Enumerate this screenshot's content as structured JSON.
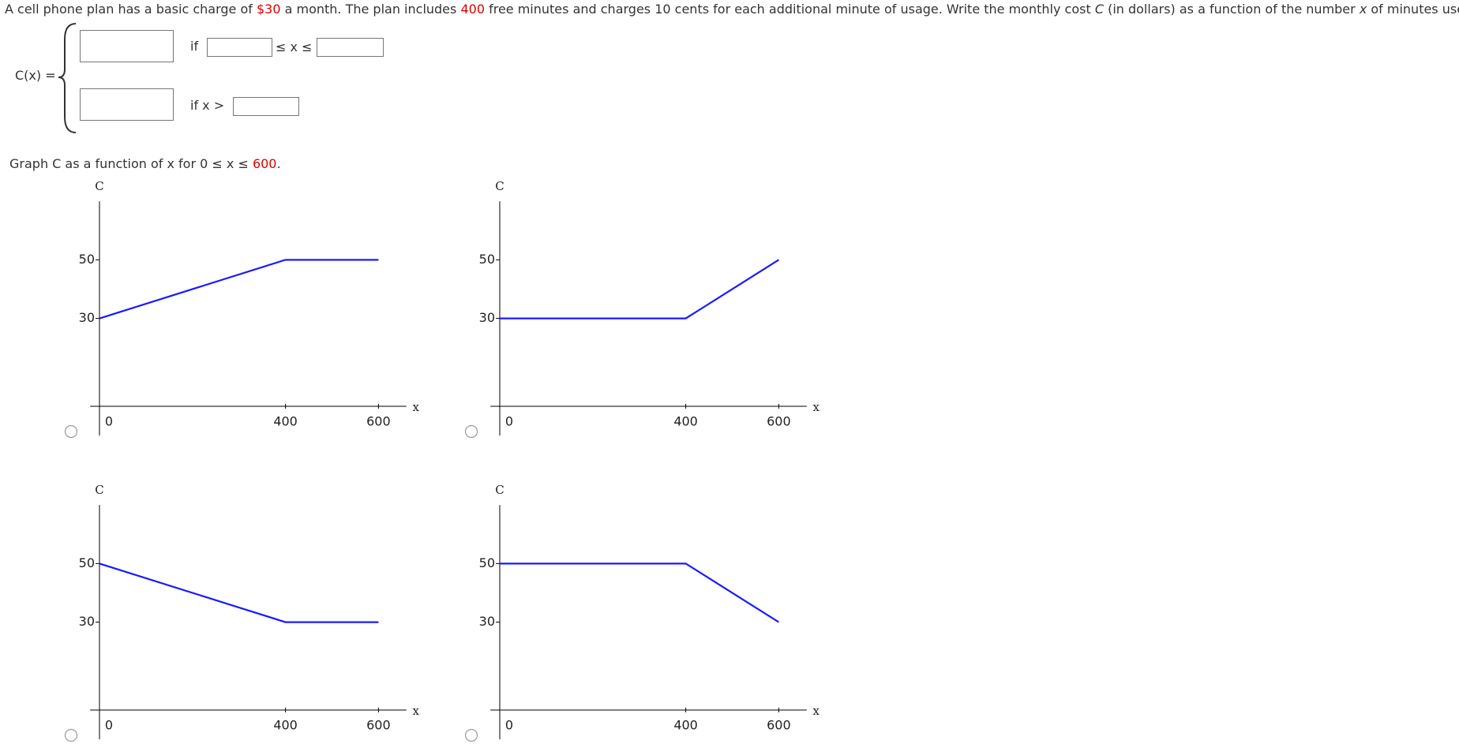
{
  "question": [
    {
      "text": "A cell phone plan has a basic charge of ",
      "highlight": false
    },
    {
      "text": "$30",
      "highlight": true
    },
    {
      "text": " a month. The plan includes ",
      "highlight": false
    },
    {
      "text": "400",
      "highlight": true
    },
    {
      "text": " free minutes and charges 10 cents for each additional minute of usage. Write the monthly cost ",
      "highlight": false
    },
    {
      "text": "C",
      "highlight": false,
      "italic": true
    },
    {
      "text": " (in dollars) as a function of the number ",
      "highlight": false
    },
    {
      "text": "x",
      "highlight": false,
      "italic": true
    },
    {
      "text": " of minutes used.",
      "highlight": false
    }
  ],
  "piecewise": {
    "lhs": "C(x) =",
    "case1_if": "if",
    "case1_between": "≤ x ≤",
    "case2_if": "if x >"
  },
  "instruction": [
    {
      "text": "Graph C as a function of x for 0 ≤ x ≤ ",
      "highlight": false
    },
    {
      "text": "600",
      "highlight": true
    },
    {
      "text": ".",
      "highlight": false
    }
  ],
  "chart_data": [
    {
      "type": "line",
      "x": [
        0,
        400,
        600
      ],
      "values": [
        30,
        50,
        50
      ],
      "color": "#1a1aff",
      "xlim": [
        -20,
        660
      ],
      "ylim": [
        -10,
        70
      ],
      "xticks": [
        0,
        400,
        600
      ],
      "yticks": [
        30,
        50
      ],
      "xlabel": "x",
      "ylabel": "C"
    },
    {
      "type": "line",
      "x": [
        0,
        400,
        600
      ],
      "values": [
        30,
        30,
        50
      ],
      "color": "#1a1aff",
      "xlim": [
        -20,
        660
      ],
      "ylim": [
        -10,
        70
      ],
      "xticks": [
        0,
        400,
        600
      ],
      "yticks": [
        30,
        50
      ],
      "xlabel": "x",
      "ylabel": "C"
    },
    {
      "type": "line",
      "x": [
        0,
        400,
        600
      ],
      "values": [
        50,
        30,
        30
      ],
      "color": "#1a1aff",
      "xlim": [
        -20,
        660
      ],
      "ylim": [
        -10,
        70
      ],
      "xticks": [
        0,
        400,
        600
      ],
      "yticks": [
        30,
        50
      ],
      "xlabel": "x",
      "ylabel": "C"
    },
    {
      "type": "line",
      "x": [
        0,
        400,
        600
      ],
      "values": [
        50,
        50,
        30
      ],
      "color": "#1a1aff",
      "xlim": [
        -20,
        660
      ],
      "ylim": [
        -10,
        70
      ],
      "xticks": [
        0,
        400,
        600
      ],
      "yticks": [
        30,
        50
      ],
      "xlabel": "x",
      "ylabel": "C"
    }
  ]
}
